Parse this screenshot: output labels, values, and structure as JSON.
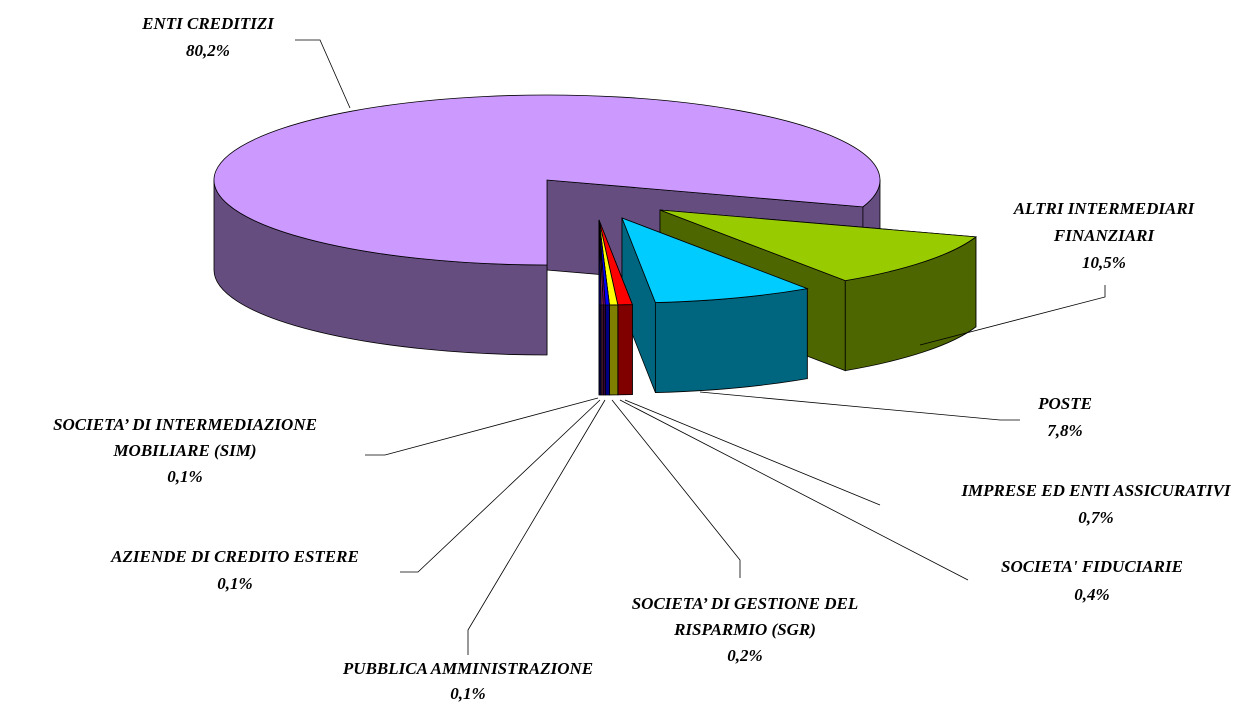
{
  "chart_data": {
    "type": "pie3d",
    "categories": [
      "ENTI CREDITIZI",
      "ALTRI INTERMEDIARI FINANZIARI",
      "POSTE",
      "IMPRESE ED ENTI ASSICURATIVI",
      "SOCIETA' FIDUCIARIE",
      "SOCIETA’ DI GESTIONE DEL RISPARMIO (SGR)",
      "PUBBLICA AMMINISTRAZIONE",
      "AZIENDE DI CREDITO ESTERE",
      "SOCIETA’ DI INTERMEDIAZIONE MOBILIARE (SIM)"
    ],
    "values": [
      80.2,
      10.5,
      7.8,
      0.7,
      0.4,
      0.2,
      0.1,
      0.1,
      0.1
    ],
    "value_labels": [
      "80,2%",
      "10,5%",
      "7,8%",
      "0,7%",
      "0,4%",
      "0,2%",
      "0,1%",
      "0,1%",
      "0,1%"
    ],
    "colors": [
      "#cc99ff",
      "#99cc00",
      "#00ccff",
      "#ff0000",
      "#ffff00",
      "#0000ff",
      "#800080",
      "#993366",
      "#000080"
    ]
  }
}
